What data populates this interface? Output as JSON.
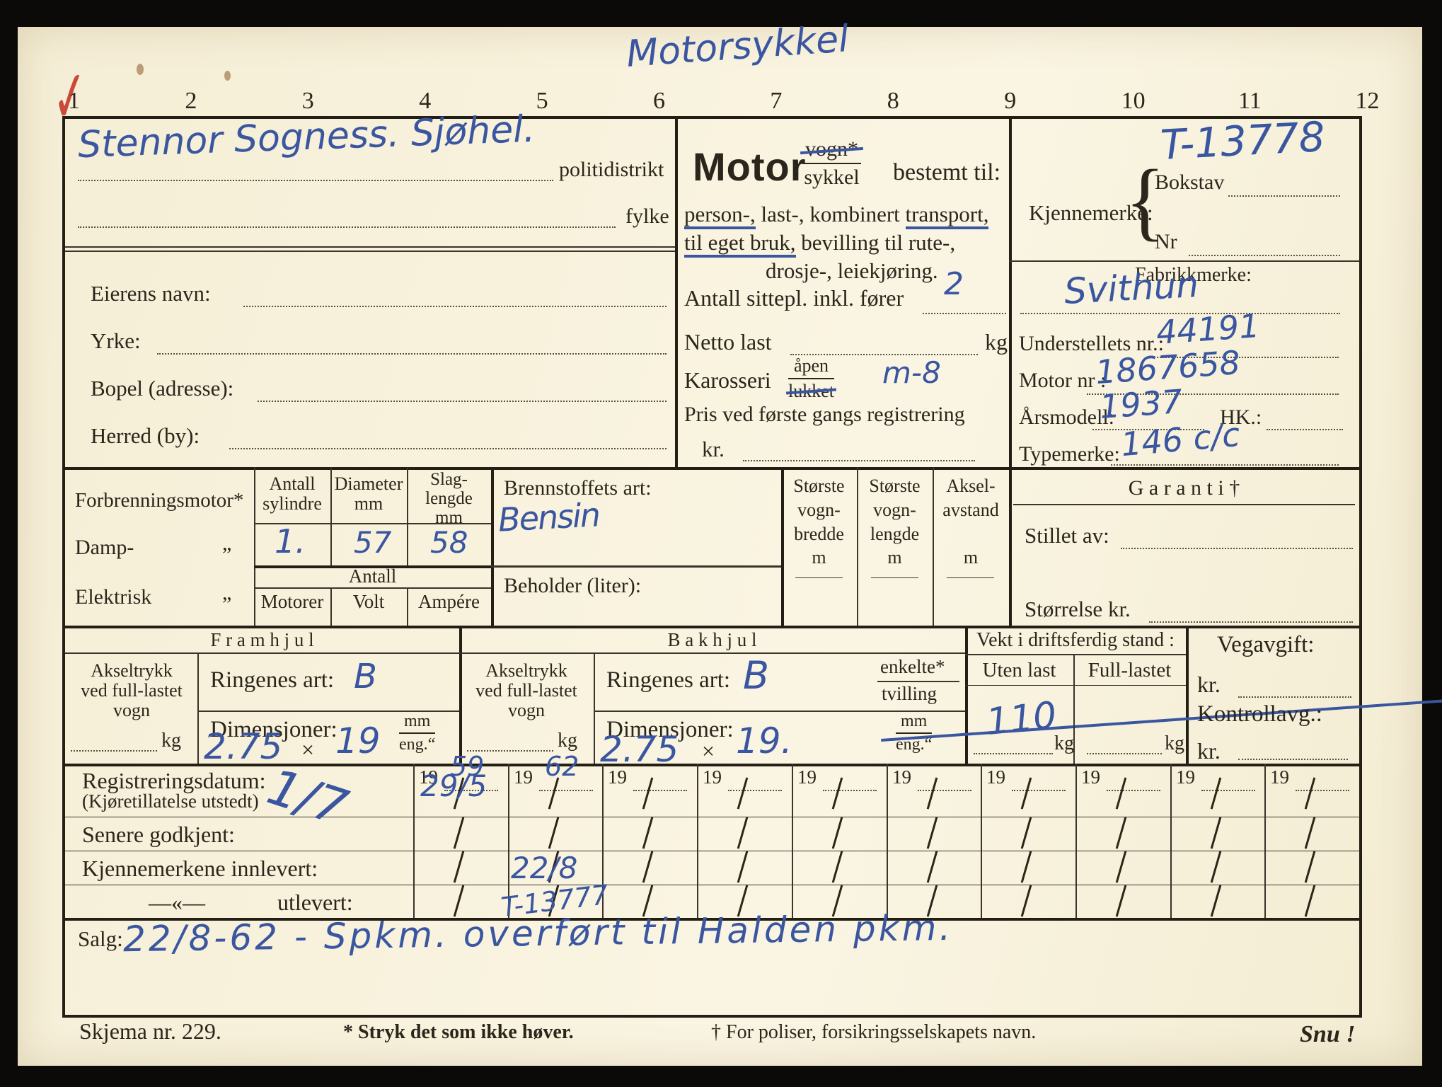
{
  "scan": {
    "annotation": "Motorsykkel",
    "checkmark": "✓"
  },
  "ruler": {
    "numbers": [
      "1",
      "2",
      "3",
      "4",
      "5",
      "6",
      "7",
      "8",
      "9",
      "10",
      "11",
      "12"
    ]
  },
  "owner_section": {
    "hw_top_line": "Stennor Sogness. Sjøhel.",
    "politidistrikt_label": "politidistrikt",
    "fylke_label": "fylke",
    "eierens_navn_label": "Eierens navn:",
    "yrke_label": "Yrke:",
    "bopel_label": "Bopel (adresse):",
    "herred_label": "Herred (by):"
  },
  "purpose_section": {
    "motor": "Motor",
    "vogn": "vogn*",
    "sykkel": "sykkel",
    "bestemt_til": "bestemt til:",
    "line1_person": "person-,",
    "line1_mid": " last-, kombinert ",
    "line1_transport": "transport,",
    "line2_underlined": "til eget bruk,",
    "line2_rest": " bevilling til rute-,",
    "line3": "drosje-, leiekjøring.",
    "seats_label": "Antall sittepl. inkl. fører",
    "seats_value": "2",
    "netto_label": "Netto last",
    "netto_unit": "kg",
    "karosseri_label": "Karosseri",
    "apen": "åpen",
    "lukket": "lukket",
    "karosseri_value": "m-8",
    "pris_label": "Pris ved første gangs registrering",
    "pris_unit": "kr."
  },
  "identity_section": {
    "hw_plate": "T-13778",
    "kjennemerke_label": "Kjennemerke:",
    "brace": "{",
    "bokstav_label": "Bokstav",
    "nr_label": "Nr",
    "fabrikkmerke_label": "Fabrikkmerke:",
    "fabrikkmerke_value": "Svithun",
    "understell_label": "Understellets nr.:",
    "understell_value": "44191",
    "motornr_label": "Motor nr :",
    "motornr_value": "1867658",
    "arsmodell_label": "Årsmodell:",
    "arsmodell_value": "1937",
    "hk_label": "HK.:",
    "typemerke_label": "Typemerke:",
    "typemerke_value": "146 c/c"
  },
  "engine_section": {
    "forbrenningsmotor_label": "Forbrenningsmotor*",
    "damp_label": "Damp-",
    "elektrisk_label": "Elektrisk",
    "ditto": "„",
    "antall_sylindre_header": "Antall\nsylindre",
    "diameter_header": "Diameter\nmm",
    "slaglengde_header": "Slag-\nlengde\nmm",
    "sylindre_value": "1.",
    "diameter_value": "57",
    "slaglengde_value": "58",
    "antall_header": "Antall",
    "motorer_header": "Motorer",
    "volt_header": "Volt",
    "ampere_header": "Ampére",
    "brennstoff_label": "Brennstoffets art:",
    "brennstoff_value": "Bensin",
    "beholder_label": "Beholder (liter):",
    "bredde_header": "Største\nvogn-\nbredde\nm",
    "lengde_header": "Største\nvogn-\nlengde\nm",
    "aksel_header": "Aksel-\navstand\n\nm",
    "garanti_title": "G a r a n t i †",
    "stillet_av_label": "Stillet av:",
    "storrelse_label": "Størrelse kr."
  },
  "wheels_section": {
    "framhjul_title": "F r a m h j u l",
    "bakhjul_title": "B a k h j u l",
    "akseltrykk_label": "Akseltrykk\nved full-lastet\nvogn",
    "kg": "kg",
    "ringenes_art_label": "Ringenes art:",
    "fram_art_value": "B",
    "bak_art_value": "B",
    "dimensjoner_label": "Dimensjoner:",
    "times": "×",
    "fram_dim_a": "2.75",
    "fram_dim_b": "19",
    "bak_dim_a": "2.75",
    "bak_dim_b": "19.",
    "mm": "mm",
    "eng": "eng.“",
    "enkelte": "enkelte*",
    "tvilling": "tvilling",
    "vekt_title": "Vekt i driftsferdig stand :",
    "uten_last_label": "Uten last",
    "full_lastet_label": "Full-lastet",
    "uten_last_value": "110",
    "vegavgift_label": "Vegavgift:",
    "kr": "kr.",
    "kontrollavg_label": "Kontrollavg.:"
  },
  "dates_section": {
    "reg_label": "Registreringsdatum:",
    "reg_sub_label": "(Kjøretillatelse utstedt)",
    "senere_label": "Senere godkjent:",
    "innlevert_label": "Kjennemerkene innlevert:",
    "ditto_mark": "—«—",
    "utlevert_label": "utlevert:",
    "hw_mark": "1/7",
    "year_prefix": "19",
    "columns": [
      {
        "year": "59",
        "reg": "29/5",
        "senere": "",
        "innlevert": "",
        "utlevert": ""
      },
      {
        "year": "62",
        "reg": "",
        "senere": "",
        "innlevert": "22/8",
        "utlevert": "T-13777"
      },
      {
        "year": "",
        "reg": "",
        "senere": "",
        "innlevert": "",
        "utlevert": ""
      },
      {
        "year": "",
        "reg": "",
        "senere": "",
        "innlevert": "",
        "utlevert": ""
      },
      {
        "year": "",
        "reg": "",
        "senere": "",
        "innlevert": "",
        "utlevert": ""
      },
      {
        "year": "",
        "reg": "",
        "senere": "",
        "innlevert": "",
        "utlevert": ""
      },
      {
        "year": "",
        "reg": "",
        "senere": "",
        "innlevert": "",
        "utlevert": ""
      },
      {
        "year": "",
        "reg": "",
        "senere": "",
        "innlevert": "",
        "utlevert": ""
      },
      {
        "year": "",
        "reg": "",
        "senere": "",
        "innlevert": "",
        "utlevert": ""
      },
      {
        "year": "",
        "reg": "",
        "senere": "",
        "innlevert": "",
        "utlevert": ""
      }
    ]
  },
  "salg_section": {
    "label": "Salg:",
    "value": "22/8-62 - Spkm. overført til Halden pkm."
  },
  "footer": {
    "skjema": "Skjema nr. 229.",
    "note1": "* Stryk det som ikke høver.",
    "note2": "† For poliser, forsikringsselskapets navn.",
    "snu": "Snu !"
  },
  "colors": {
    "paper": "#f8f2dd",
    "print": "#2b261b",
    "ink_blue": "#3a56a0",
    "red": "#c94b38"
  }
}
